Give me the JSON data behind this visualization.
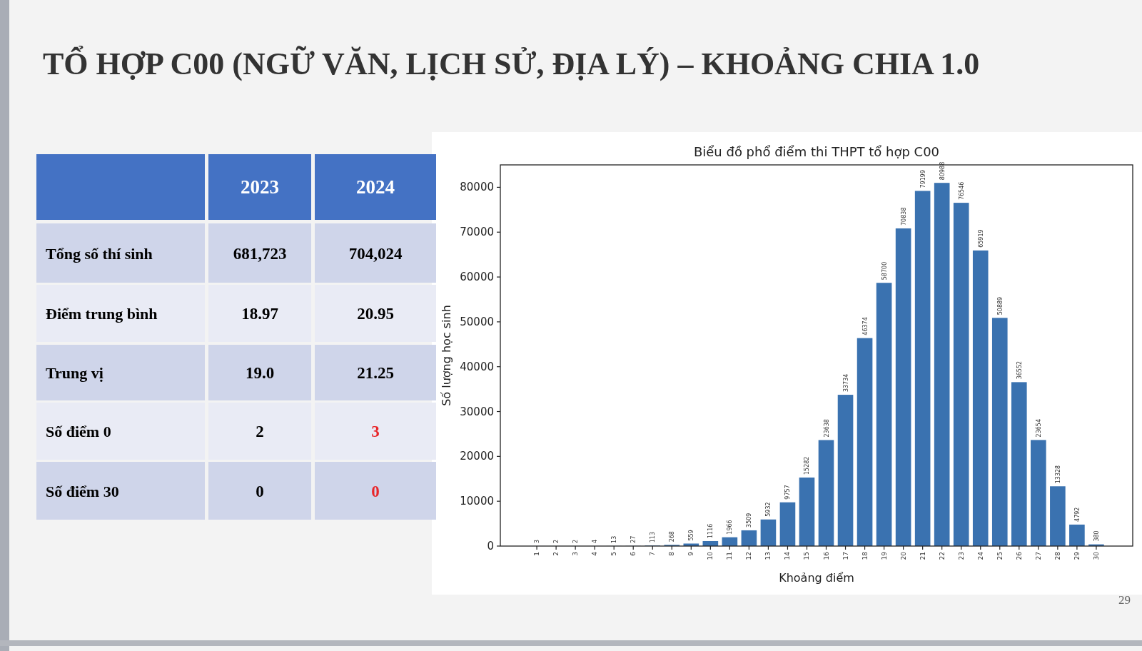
{
  "chart_data": [
    {
      "type": "other",
      "title": "TỔ HỢP C00 (NGỮ VĂN, LỊCH SỬ, ĐỊA LÝ) – KHOẢNG CHIA 1.0",
      "categories": [
        "2023",
        "2024"
      ],
      "y_categories": [
        "Tổng số thí sinh",
        "Điểm trung bình",
        "Trung vị",
        "Số điểm 0",
        "Số điểm 30"
      ],
      "cells": [
        [
          "681,723",
          "704,024"
        ],
        [
          "18.97",
          "20.95"
        ],
        [
          "19.0",
          "21.25"
        ],
        [
          "2",
          "3"
        ],
        [
          "0",
          "0"
        ]
      ],
      "colors": [
        [
          "#000000",
          "#000000"
        ],
        [
          "#000000",
          "#000000"
        ],
        [
          "#000000",
          "#000000"
        ],
        [
          "#000000",
          "#e8262a"
        ],
        [
          "#000000",
          "#e8262a"
        ]
      ]
    },
    {
      "type": "bar",
      "title": "Biểu đồ phổ điểm thi THPT tổ hợp C00",
      "xlabel": "Khoảng điểm",
      "ylabel": "Số lượng học sinh",
      "categories": [
        "1",
        "2",
        "3",
        "4",
        "5",
        "6",
        "7",
        "8",
        "9",
        "10",
        "11",
        "12",
        "13",
        "14",
        "15",
        "16",
        "17",
        "18",
        "19",
        "20",
        "21",
        "22",
        "23",
        "24",
        "25",
        "26",
        "27",
        "28",
        "29",
        "30"
      ],
      "values": [
        3,
        2,
        2,
        4,
        13,
        27,
        113,
        268,
        559,
        1116,
        1966,
        3509,
        5932,
        9757,
        15282,
        23638,
        33734,
        46374,
        58700,
        70838,
        79199,
        80988,
        76546,
        65919,
        50889,
        36552,
        23654,
        13328,
        4792,
        380
      ],
      "color": "#3a72b0",
      "ylim": [
        0,
        85000
      ],
      "yticks": [
        0,
        10000,
        20000,
        30000,
        40000,
        50000,
        60000,
        70000,
        80000
      ],
      "data_labels": true,
      "annotations": [
        "29"
      ]
    }
  ]
}
